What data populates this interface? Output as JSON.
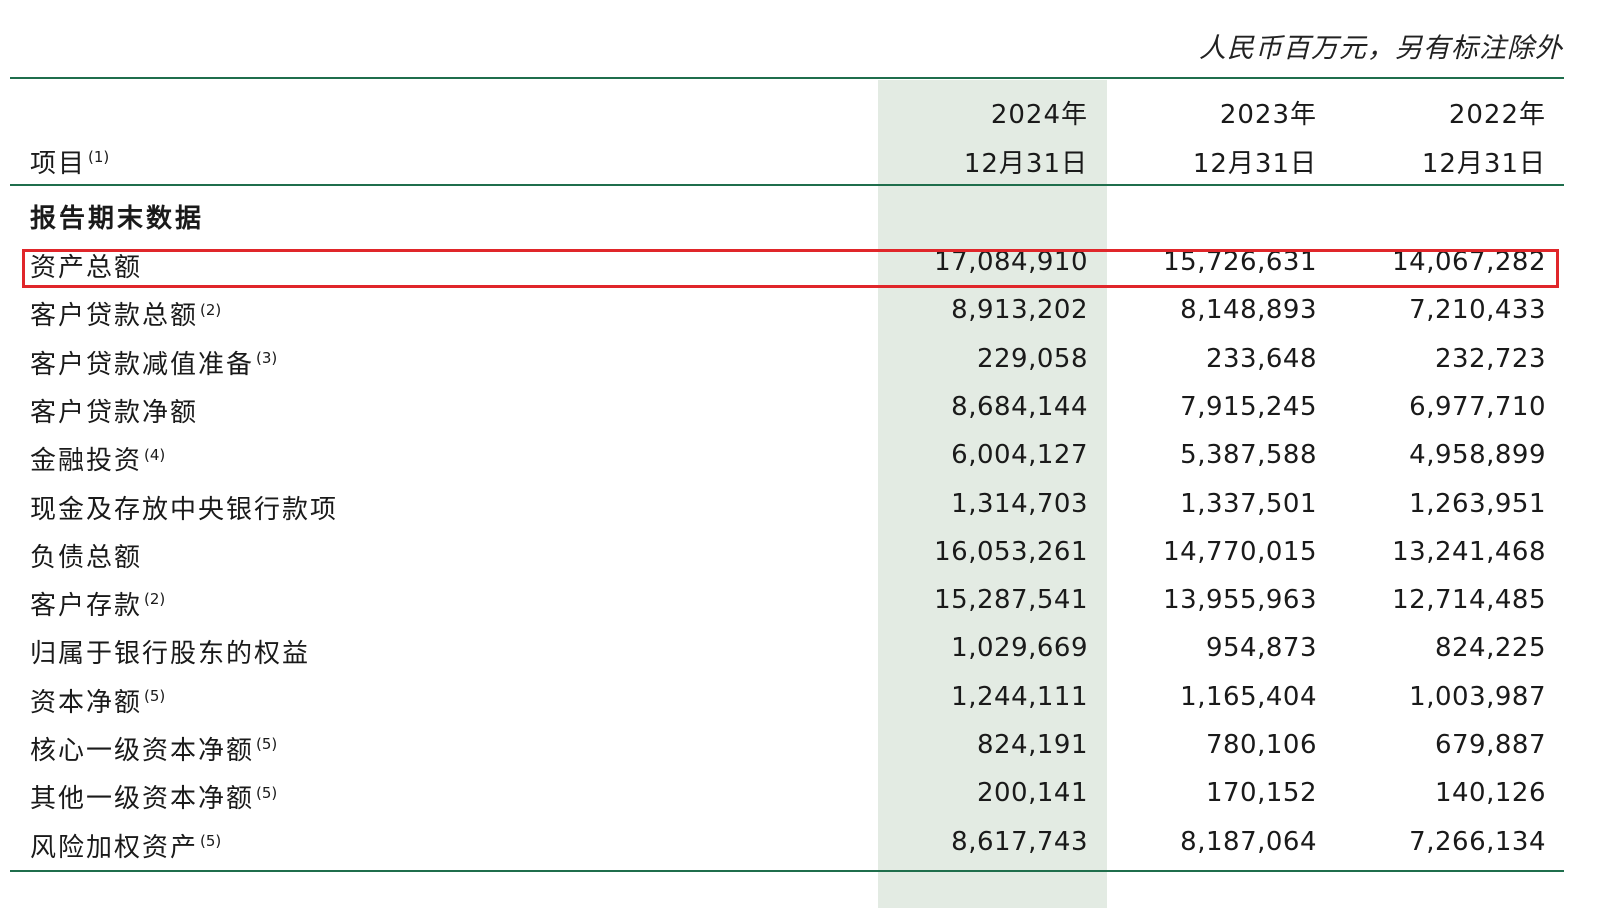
{
  "unit_note": "人民币百万元，另有标注除外",
  "header": {
    "item_label": "项目",
    "item_note": "(1)",
    "columns": [
      {
        "year": "2024年",
        "date": "12月31日"
      },
      {
        "year": "2023年",
        "date": "12月31日"
      },
      {
        "year": "2022年",
        "date": "12月31日"
      }
    ]
  },
  "section_title": "报告期末数据",
  "rows": [
    {
      "label": "资产总额",
      "note": "",
      "values": [
        "17,084,910",
        "15,726,631",
        "14,067,282"
      ]
    },
    {
      "label": "客户贷款总额",
      "note": "(2)",
      "values": [
        "8,913,202",
        "8,148,893",
        "7,210,433"
      ]
    },
    {
      "label": "客户贷款减值准备",
      "note": "(3)",
      "values": [
        "229,058",
        "233,648",
        "232,723"
      ]
    },
    {
      "label": "客户贷款净额",
      "note": "",
      "values": [
        "8,684,144",
        "7,915,245",
        "6,977,710"
      ]
    },
    {
      "label": "金融投资",
      "note": "(4)",
      "values": [
        "6,004,127",
        "5,387,588",
        "4,958,899"
      ]
    },
    {
      "label": "现金及存放中央银行款项",
      "note": "",
      "values": [
        "1,314,703",
        "1,337,501",
        "1,263,951"
      ]
    },
    {
      "label": "负债总额",
      "note": "",
      "values": [
        "16,053,261",
        "14,770,015",
        "13,241,468"
      ]
    },
    {
      "label": "客户存款",
      "note": "(2)",
      "values": [
        "15,287,541",
        "13,955,963",
        "12,714,485"
      ]
    },
    {
      "label": "归属于银行股东的权益",
      "note": "",
      "values": [
        "1,029,669",
        "954,873",
        "824,225"
      ]
    },
    {
      "label": "资本净额",
      "note": "(5)",
      "values": [
        "1,244,111",
        "1,165,404",
        "1,003,987"
      ]
    },
    {
      "label": "核心一级资本净额",
      "note": "(5)",
      "values": [
        "824,191",
        "780,106",
        "679,887"
      ]
    },
    {
      "label": "其他一级资本净额",
      "note": "(5)",
      "values": [
        "200,141",
        "170,152",
        "140,126"
      ]
    },
    {
      "label": "风险加权资产",
      "note": "(5)",
      "values": [
        "8,617,743",
        "8,187,064",
        "7,266,134"
      ]
    }
  ],
  "colors": {
    "rule": "#1f6e4c",
    "highlight_column": "#e3ebe3",
    "highlight_box": "#e0262a"
  }
}
